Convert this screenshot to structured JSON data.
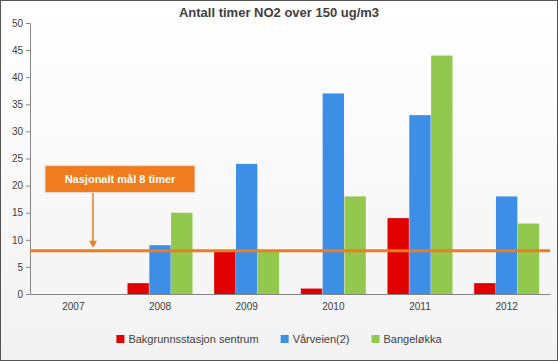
{
  "chart_data": {
    "type": "bar",
    "title": "Antall timer NO2 over 150 ug/m3",
    "categories": [
      "2007",
      "2008",
      "2009",
      "2010",
      "2011",
      "2012"
    ],
    "series": [
      {
        "name": "Bakgrunnsstasjon sentrum",
        "color": "#e00000",
        "values": [
          null,
          2,
          8,
          1,
          14,
          2
        ]
      },
      {
        "name": "Vårveien(2)",
        "color": "#3d8fe6",
        "values": [
          null,
          9,
          24,
          37,
          33,
          18
        ]
      },
      {
        "name": "Bangeløkka",
        "color": "#92c84e",
        "values": [
          null,
          15,
          8,
          18,
          44,
          13
        ]
      }
    ],
    "ylim": [
      0,
      50
    ],
    "yticks": [
      0,
      5,
      10,
      15,
      20,
      25,
      30,
      35,
      40,
      45,
      50
    ],
    "grid": false,
    "legend": "bottom",
    "annotations": [
      {
        "label": "Nasjonalt mål 8 timer",
        "y": 8,
        "color": "#f07c1e"
      }
    ]
  }
}
